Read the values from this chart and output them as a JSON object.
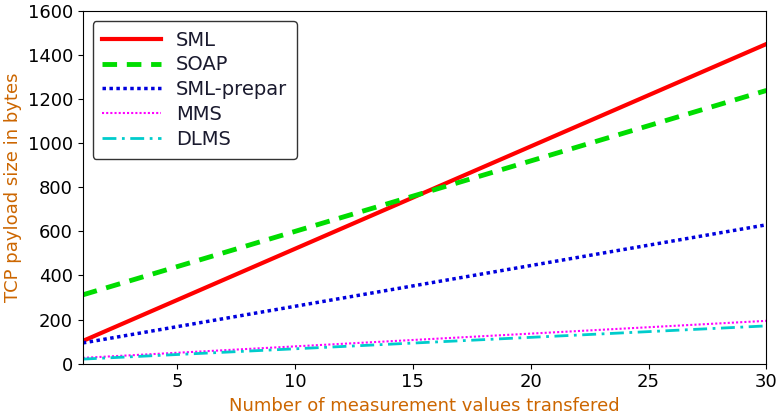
{
  "title": "",
  "xlabel": "Number of measurement values transfered",
  "ylabel": "TCP payload size in bytes",
  "xlim": [
    1,
    30
  ],
  "ylim": [
    0,
    1600
  ],
  "xticks": [
    5,
    10,
    15,
    20,
    25,
    30
  ],
  "yticks": [
    0,
    200,
    400,
    600,
    800,
    1000,
    1200,
    1400,
    1600
  ],
  "series": [
    {
      "label": "SML",
      "color": "#ff0000",
      "linestyle": "solid",
      "linewidth": 3.0,
      "intercept": 56,
      "slope": 46.5
    },
    {
      "label": "SOAP",
      "color": "#00dd00",
      "linestyle": "soap_dot",
      "linewidth": 3.5,
      "intercept": 280,
      "slope": 32.0
    },
    {
      "label": "SML-prepar",
      "color": "#0000dd",
      "linestyle": "dense_dot",
      "linewidth": 2.5,
      "intercept": 75,
      "slope": 18.5
    },
    {
      "label": "MMS",
      "color": "#ff00ff",
      "linestyle": "tiny_dot",
      "linewidth": 1.5,
      "intercept": 20,
      "slope": 5.8
    },
    {
      "label": "DLMS",
      "color": "#00cccc",
      "linestyle": "dashdot",
      "linewidth": 2.0,
      "intercept": 15,
      "slope": 5.2
    }
  ],
  "legend_loc": "upper left",
  "legend_fontsize": 14,
  "axis_label_fontsize": 13,
  "tick_fontsize": 13,
  "label_color": "#000000",
  "tick_color": "#000000",
  "axis_label_color": "#cc6600"
}
